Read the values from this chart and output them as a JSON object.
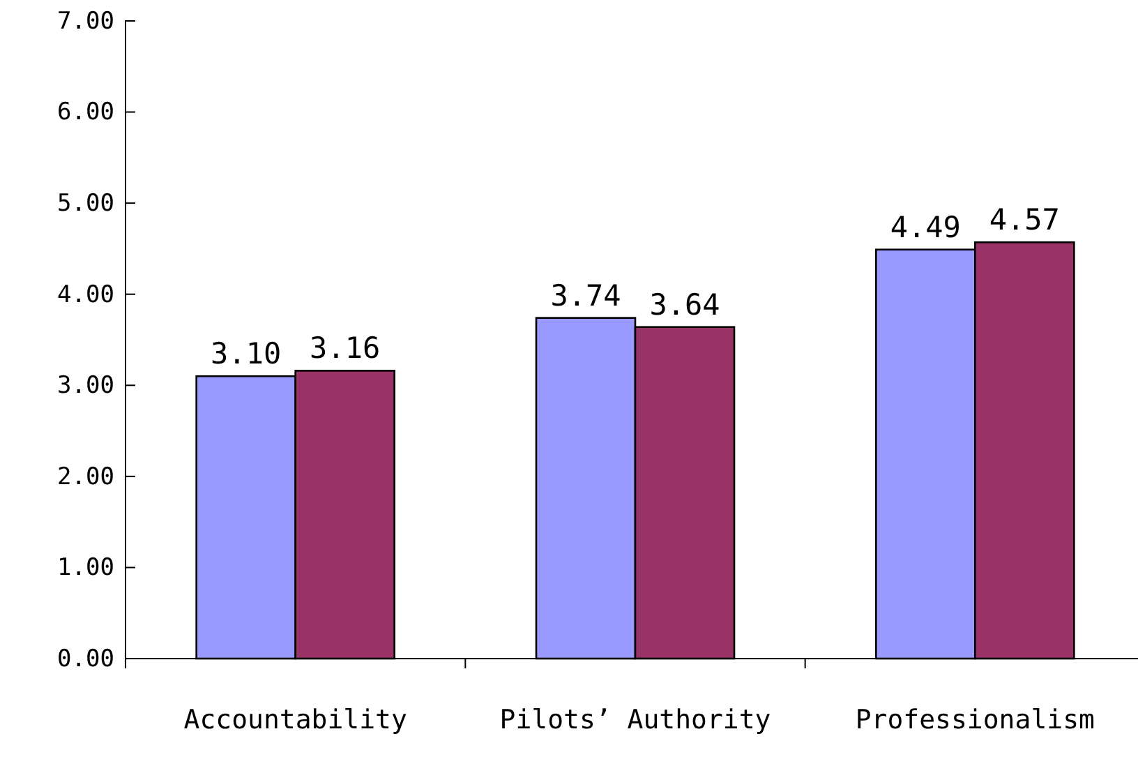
{
  "chart_data": {
    "type": "bar",
    "categories": [
      "Accountability",
      "Pilots’ Authority",
      "Professionalism"
    ],
    "series": [
      {
        "color": "#9999ff",
        "values": [
          3.1,
          3.74,
          4.49
        ],
        "value_labels": [
          "3.10",
          "3.74",
          "4.49"
        ]
      },
      {
        "color": "#993366",
        "values": [
          3.16,
          3.64,
          4.57
        ],
        "value_labels": [
          "3.16",
          "3.64",
          "4.57"
        ]
      }
    ],
    "ylim": [
      0,
      7
    ],
    "yticks": [
      {
        "value": 0,
        "label": "0.00"
      },
      {
        "value": 1,
        "label": "1.00"
      },
      {
        "value": 2,
        "label": "2.00"
      },
      {
        "value": 3,
        "label": "3.00"
      },
      {
        "value": 4,
        "label": "4.00"
      },
      {
        "value": 5,
        "label": "5.00"
      },
      {
        "value": 6,
        "label": "6.00"
      },
      {
        "value": 7,
        "label": "7.00"
      }
    ],
    "tick_labels": "xy"
  }
}
